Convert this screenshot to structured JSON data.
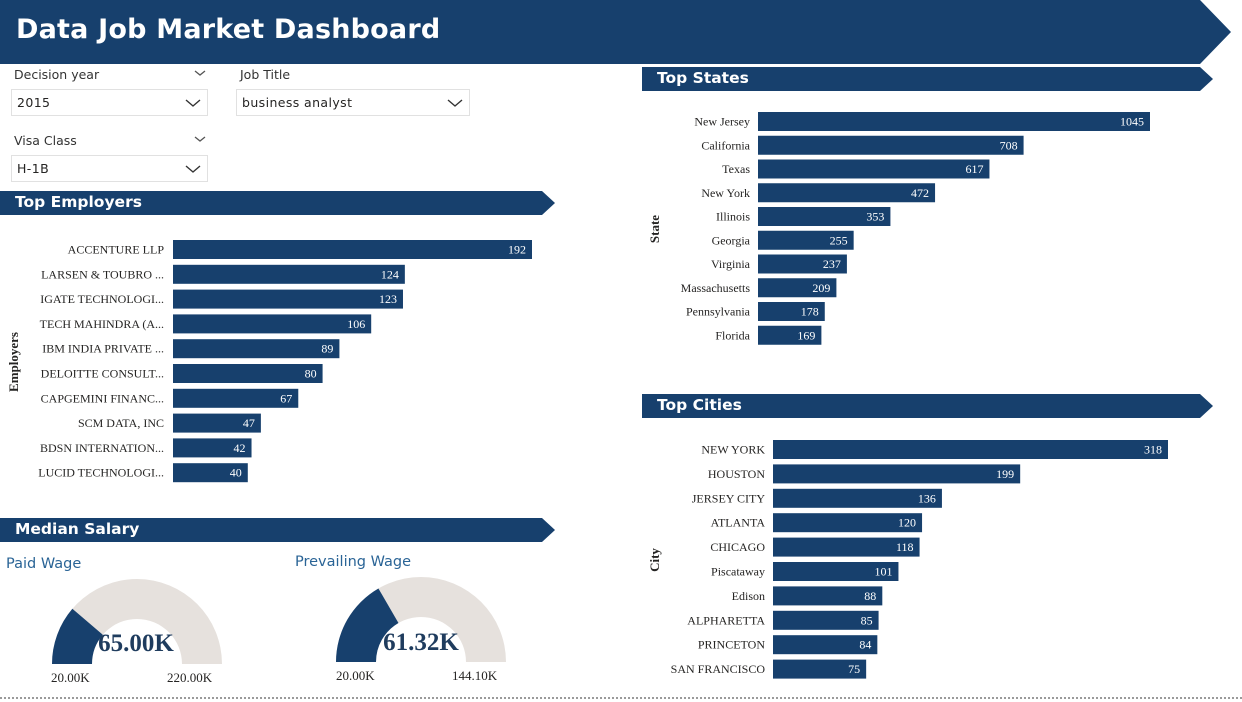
{
  "header": {
    "title": "Data Job Market Dashboard"
  },
  "colors": {
    "primary": "#17406d",
    "gauge_track": "#e6e1dd",
    "white": "#ffffff"
  },
  "filters": {
    "decision_year": {
      "label": "Decision year",
      "value": "2015"
    },
    "job_title": {
      "label": "Job Title",
      "value": "business analyst"
    },
    "visa_class": {
      "label": "Visa Class",
      "value": "H-1B"
    }
  },
  "sections": {
    "top_employers": "Top Employers",
    "top_states": "Top States",
    "top_cities": "Top Cities",
    "median_salary": "Median Salary"
  },
  "chart_data": [
    {
      "id": "employers",
      "type": "bar",
      "orientation": "horizontal",
      "ylabel": "Employers",
      "categories": [
        "ACCENTURE LLP",
        "LARSEN & TOUBRO ...",
        "IGATE TECHNOLOGI...",
        "TECH MAHINDRA (A...",
        "IBM INDIA PRIVATE ...",
        "DELOITTE CONSULT...",
        "CAPGEMINI FINANC...",
        "SCM DATA, INC",
        "BDSN INTERNATION...",
        "LUCID TECHNOLOGI..."
      ],
      "values": [
        192,
        124,
        123,
        106,
        89,
        80,
        67,
        47,
        42,
        40
      ],
      "data_labels": true
    },
    {
      "id": "states",
      "type": "bar",
      "orientation": "horizontal",
      "ylabel": "State",
      "categories": [
        "New Jersey",
        "California",
        "Texas",
        "New York",
        "Illinois",
        "Georgia",
        "Virginia",
        "Massachusetts",
        "Pennsylvania",
        "Florida"
      ],
      "values": [
        1045,
        708,
        617,
        472,
        353,
        255,
        237,
        209,
        178,
        169
      ],
      "data_labels": true
    },
    {
      "id": "cities",
      "type": "bar",
      "orientation": "horizontal",
      "ylabel": "City",
      "categories": [
        "NEW YORK",
        "HOUSTON",
        "JERSEY CITY",
        "ATLANTA",
        "CHICAGO",
        "Piscataway",
        "Edison",
        "ALPHARETTA",
        "PRINCETON",
        "SAN FRANCISCO"
      ],
      "values": [
        318,
        199,
        136,
        120,
        118,
        101,
        88,
        85,
        84,
        75
      ],
      "data_labels": true
    }
  ],
  "gauges": {
    "paid_wage": {
      "title": "Paid Wage",
      "value": 65000,
      "value_label": "65.00K",
      "min": 20000,
      "min_label": "20.00K",
      "max": 220000,
      "max_label": "220.00K"
    },
    "prevailing_wage": {
      "title": "Prevailing Wage",
      "value": 61320,
      "value_label": "61.32K",
      "min": 20000,
      "min_label": "20.00K",
      "max": 144100,
      "max_label": "144.10K"
    }
  }
}
